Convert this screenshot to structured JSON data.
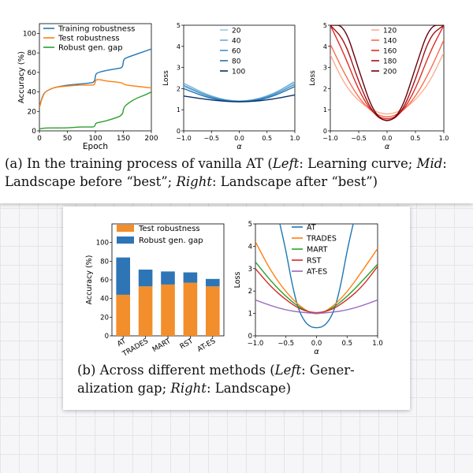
{
  "panel_a": {
    "caption": {
      "p1": "(a) In the training process of vanilla AT (",
      "left": "Left",
      "p2": ": Learning curve; ",
      "mid": "Mid",
      "p3": ": Landscape before “best”; ",
      "right": "Right",
      "p4": ": Landscape after “best”)"
    }
  },
  "panel_b": {
    "caption": {
      "p1": "(b) Across different methods (",
      "left": "Left",
      "p2": ": Gener-alization gap; ",
      "right": "Right",
      "p3": ": Landscape)"
    }
  },
  "chart_data": [
    {
      "id": "learning-curve",
      "type": "line",
      "xlabel": "Epoch",
      "ylabel": "Accuracy (%)",
      "xlim": [
        0,
        200
      ],
      "ylim": [
        0,
        110
      ],
      "xticks": [
        0,
        50,
        100,
        150,
        200
      ],
      "yticks": [
        0,
        20,
        40,
        60,
        80,
        100
      ],
      "legend_position": "top-left",
      "series": [
        {
          "name": "Training robustness",
          "color": "#1f77b4",
          "x": [
            0,
            5,
            10,
            20,
            30,
            50,
            70,
            90,
            99,
            100,
            105,
            120,
            140,
            149,
            150,
            155,
            170,
            185,
            200
          ],
          "y": [
            24,
            35,
            40,
            43,
            45,
            47,
            48,
            49,
            50,
            58,
            60,
            62,
            64,
            65,
            73,
            75,
            78,
            81,
            84
          ]
        },
        {
          "name": "Test robustness",
          "color": "#ff7f0e",
          "x": [
            0,
            5,
            10,
            20,
            30,
            50,
            70,
            90,
            99,
            100,
            105,
            120,
            140,
            149,
            150,
            155,
            170,
            185,
            200
          ],
          "y": [
            24,
            34,
            40,
            43,
            45,
            46,
            47,
            47,
            47,
            52,
            53,
            51,
            50,
            49,
            48,
            47,
            46,
            45,
            44
          ]
        },
        {
          "name": "Robust gen. gap",
          "color": "#2ca02c",
          "x": [
            0,
            10,
            30,
            50,
            70,
            90,
            99,
            100,
            110,
            130,
            149,
            150,
            160,
            175,
            190,
            200
          ],
          "y": [
            2,
            3,
            3,
            3,
            4,
            4,
            4,
            8,
            9,
            12,
            16,
            24,
            29,
            34,
            37,
            40
          ]
        }
      ]
    },
    {
      "id": "landscape-before-best",
      "type": "line",
      "xlabel": "α",
      "ylabel": "Loss",
      "xlim": [
        -1.0,
        1.0
      ],
      "ylim": [
        0,
        5
      ],
      "xticks": [
        -1.0,
        -0.5,
        0.0,
        0.5,
        1.0
      ],
      "xticklabels": [
        "−1.0",
        "−0.5",
        "0.0",
        "0.5",
        "1.0"
      ],
      "yticks": [
        0,
        1,
        2,
        3,
        4,
        5
      ],
      "legend_position": "top-right",
      "series": [
        {
          "name": "20",
          "color": "#9ecae1",
          "x": [
            -1,
            -0.5,
            0,
            0.5,
            1
          ],
          "y": [
            2.1,
            1.55,
            1.35,
            1.55,
            2.35
          ]
        },
        {
          "name": "40",
          "color": "#6baed6",
          "x": [
            -1,
            -0.5,
            0,
            0.5,
            1
          ],
          "y": [
            2.25,
            1.6,
            1.35,
            1.6,
            2.3
          ]
        },
        {
          "name": "60",
          "color": "#4292c6",
          "x": [
            -1,
            -0.5,
            0,
            0.5,
            1
          ],
          "y": [
            2.15,
            1.55,
            1.35,
            1.55,
            2.2
          ]
        },
        {
          "name": "80",
          "color": "#2171b5",
          "x": [
            -1,
            -0.5,
            0,
            0.5,
            1
          ],
          "y": [
            2.0,
            1.5,
            1.35,
            1.5,
            2.1
          ]
        },
        {
          "name": "100",
          "color": "#08306b",
          "x": [
            -1,
            -0.5,
            0,
            0.5,
            1
          ],
          "y": [
            1.65,
            1.45,
            1.35,
            1.45,
            1.7
          ]
        }
      ]
    },
    {
      "id": "landscape-after-best",
      "type": "line",
      "xlabel": "α",
      "ylabel": "Loss",
      "xlim": [
        -1.0,
        1.0
      ],
      "ylim": [
        0,
        5
      ],
      "xticks": [
        -1.0,
        -0.5,
        0.0,
        0.5,
        1.0
      ],
      "xticklabels": [
        "−1.0",
        "−0.5",
        "0.0",
        "0.5",
        "1.0"
      ],
      "yticks": [
        0,
        1,
        2,
        3,
        4,
        5
      ],
      "legend_position": "top-right",
      "series": [
        {
          "name": "120",
          "color": "#fcae91",
          "x": [
            -1,
            -0.75,
            -0.5,
            -0.25,
            0,
            0.25,
            0.5,
            0.75,
            1
          ],
          "y": [
            3.6,
            2.2,
            1.4,
            0.95,
            0.75,
            0.95,
            1.45,
            2.3,
            3.7
          ]
        },
        {
          "name": "140",
          "color": "#fb6a4a",
          "x": [
            -1,
            -0.75,
            -0.5,
            -0.25,
            0,
            0.25,
            0.5,
            0.75,
            1
          ],
          "y": [
            4.1,
            2.7,
            1.55,
            0.85,
            0.6,
            0.85,
            1.6,
            2.8,
            4.3
          ]
        },
        {
          "name": "160",
          "color": "#de2d26",
          "x": [
            -1,
            -0.75,
            -0.5,
            -0.25,
            0,
            0.25,
            0.5,
            0.75,
            1
          ],
          "y": [
            5.0,
            3.6,
            1.9,
            0.8,
            0.5,
            0.8,
            1.95,
            3.7,
            5.0
          ]
        },
        {
          "name": "180",
          "color": "#a50f15",
          "x": [
            -1,
            -0.75,
            -0.5,
            -0.25,
            0,
            0.25,
            0.5,
            0.75,
            1
          ],
          "y": [
            5.0,
            4.3,
            2.3,
            0.8,
            0.4,
            0.8,
            2.4,
            4.5,
            5.0
          ]
        },
        {
          "name": "200",
          "color": "#67000d",
          "x": [
            -1,
            -0.75,
            -0.5,
            -0.25,
            0,
            0.25,
            0.5,
            0.75,
            1
          ],
          "y": [
            5.0,
            5.0,
            2.9,
            0.9,
            0.35,
            0.9,
            3.0,
            5.0,
            5.0
          ]
        }
      ]
    },
    {
      "id": "generalization-gap-bars",
      "type": "bar",
      "stacked": true,
      "ylabel": "Accuracy (%)",
      "ylim": [
        0,
        120
      ],
      "yticks": [
        0,
        20,
        40,
        60,
        80,
        100
      ],
      "categories": [
        "AT",
        "TRADES",
        "MART",
        "RST",
        "AT-ES"
      ],
      "legend_position": "top-right",
      "series": [
        {
          "name": "Test robustness",
          "color": "#f28e2b",
          "values": [
            44,
            53,
            55,
            57,
            53
          ]
        },
        {
          "name": "Robust gen. gap",
          "color": "#2e75b6",
          "values": [
            40,
            18,
            14,
            11,
            8
          ]
        }
      ]
    },
    {
      "id": "landscape-methods",
      "type": "line",
      "xlabel": "α",
      "ylabel": "Loss",
      "xlim": [
        -1.0,
        1.0
      ],
      "ylim": [
        0,
        5
      ],
      "xticks": [
        -1.0,
        -0.5,
        0.0,
        0.5,
        1.0
      ],
      "xticklabels": [
        "−1.0",
        "−0.5",
        "0.0",
        "0.5",
        "1.0"
      ],
      "yticks": [
        0,
        1,
        2,
        3,
        4,
        5
      ],
      "legend_position": "top-right",
      "series": [
        {
          "name": "AT",
          "color": "#1f77b4",
          "x": [
            -0.6,
            -0.5,
            -0.4,
            -0.3,
            -0.2,
            -0.1,
            0,
            0.1,
            0.2,
            0.3,
            0.4,
            0.5,
            0.6
          ],
          "y": [
            5.0,
            3.8,
            2.3,
            1.2,
            0.65,
            0.4,
            0.35,
            0.4,
            0.65,
            1.2,
            2.3,
            3.8,
            5.0
          ]
        },
        {
          "name": "TRADES",
          "color": "#ff7f0e",
          "x": [
            -1,
            -0.75,
            -0.5,
            -0.25,
            0,
            0.25,
            0.5,
            0.75,
            1
          ],
          "y": [
            4.2,
            2.9,
            1.95,
            1.25,
            0.9,
            1.25,
            1.95,
            2.9,
            3.9
          ]
        },
        {
          "name": "MART",
          "color": "#2ca02c",
          "x": [
            -1,
            -0.75,
            -0.5,
            -0.25,
            0,
            0.25,
            0.5,
            0.75,
            1
          ],
          "y": [
            3.3,
            2.45,
            1.75,
            1.2,
            0.95,
            1.2,
            1.75,
            2.45,
            3.2
          ]
        },
        {
          "name": "RST",
          "color": "#d62728",
          "x": [
            -1,
            -0.75,
            -0.5,
            -0.25,
            0,
            0.25,
            0.5,
            0.75,
            1
          ],
          "y": [
            3.0,
            2.2,
            1.6,
            1.15,
            1.0,
            1.15,
            1.6,
            2.2,
            3.1
          ]
        },
        {
          "name": "AT-ES",
          "color": "#9467bd",
          "x": [
            -1,
            -0.75,
            -0.5,
            -0.25,
            0,
            0.25,
            0.5,
            0.75,
            1
          ],
          "y": [
            1.6,
            1.35,
            1.15,
            1.05,
            1.0,
            1.05,
            1.15,
            1.35,
            1.6
          ]
        }
      ]
    }
  ]
}
